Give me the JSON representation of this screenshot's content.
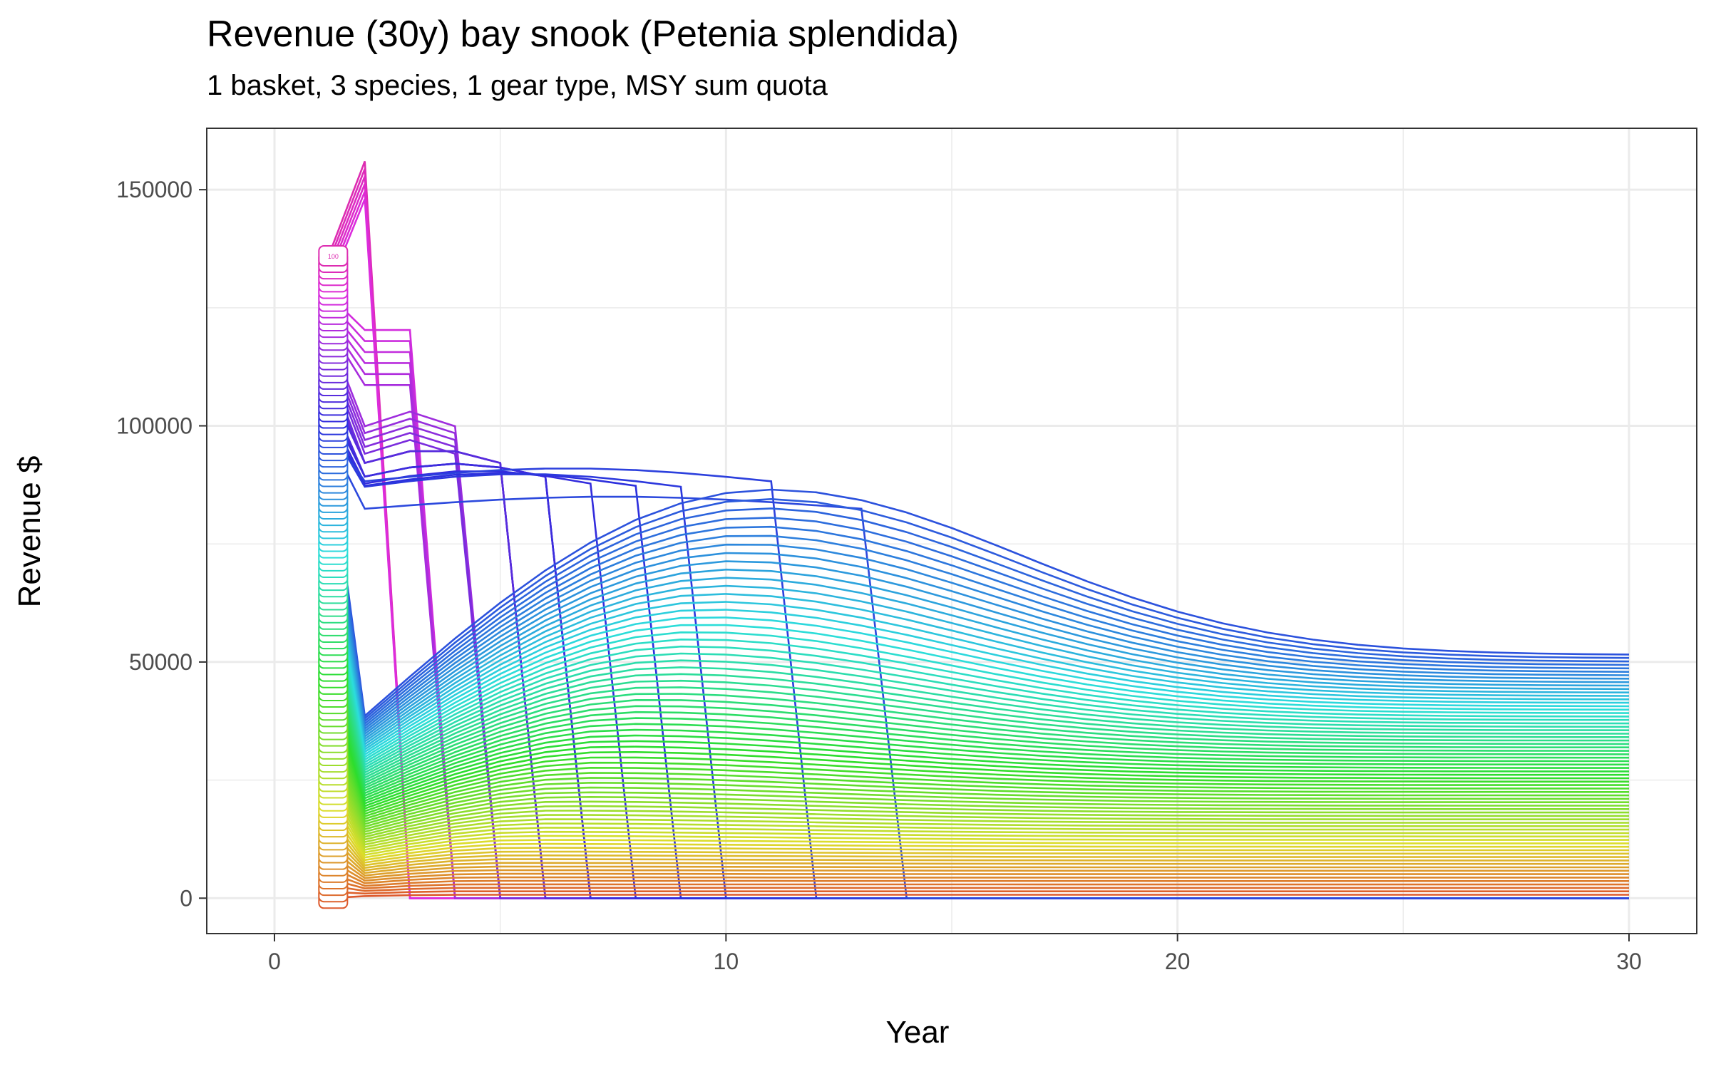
{
  "chart_data": {
    "type": "line",
    "title": "Revenue (30y) bay snook (Petenia splendida)",
    "subtitle": "1 basket, 3 species, 1 gear type, MSY sum quota",
    "xlabel": "Year",
    "ylabel": "Revenue $",
    "xlim": [
      -1.5,
      31.5
    ],
    "ylim": [
      -7500,
      163000
    ],
    "x_ticks": [
      0,
      10,
      20,
      30
    ],
    "x_tick_labels": [
      "0",
      "10",
      "20",
      "30"
    ],
    "y_ticks": [
      0,
      50000,
      100000,
      150000
    ],
    "y_tick_labels": [
      "0",
      "50000",
      "100000",
      "150000"
    ],
    "grid": true,
    "legend": "none",
    "highlighted_label": "100",
    "n_series": 100,
    "series_groups": {
      "full_effort_collapse": {
        "effort_index_range": [
          95,
          100
        ],
        "peak_year": 2,
        "peak_value_range": [
          148000,
          156000
        ]
      },
      "collapse_year_3": {
        "effort_index_range": [
          89,
          94
        ],
        "peak_value_range": [
          112000,
          124000
        ]
      },
      "collapse_year_4": {
        "effort_index_range": [
          84,
          88
        ],
        "peak_value_range": [
          97000,
          103000
        ]
      },
      "collapse_year_5": {
        "effort_index_range": [
          80,
          83
        ],
        "peak_value": 95000
      },
      "collapse_year_6": {
        "effort_index_range": [
          77,
          79
        ],
        "peak_value": 92000
      },
      "collapse_year_7": {
        "effort_index": 76,
        "peak_value": 90500
      },
      "collapse_year_8": {
        "effort_index": 75,
        "peak_value": 90000
      },
      "collapse_year_9": {
        "effort_index": 74,
        "peak_value": 89800
      },
      "collapse_year_11": {
        "effort_index": 73,
        "peak_value": 91000
      },
      "collapse_year_14": {
        "effort_index": 72,
        "peak_value": 90500
      },
      "sustained_highest": {
        "effort_index": 71,
        "peak_year": 10,
        "peak_value": 86500,
        "year30_value": 51500
      }
    },
    "x_start": 1,
    "x_end": 30,
    "initial_revenue_range": [
      0,
      136000
    ]
  }
}
